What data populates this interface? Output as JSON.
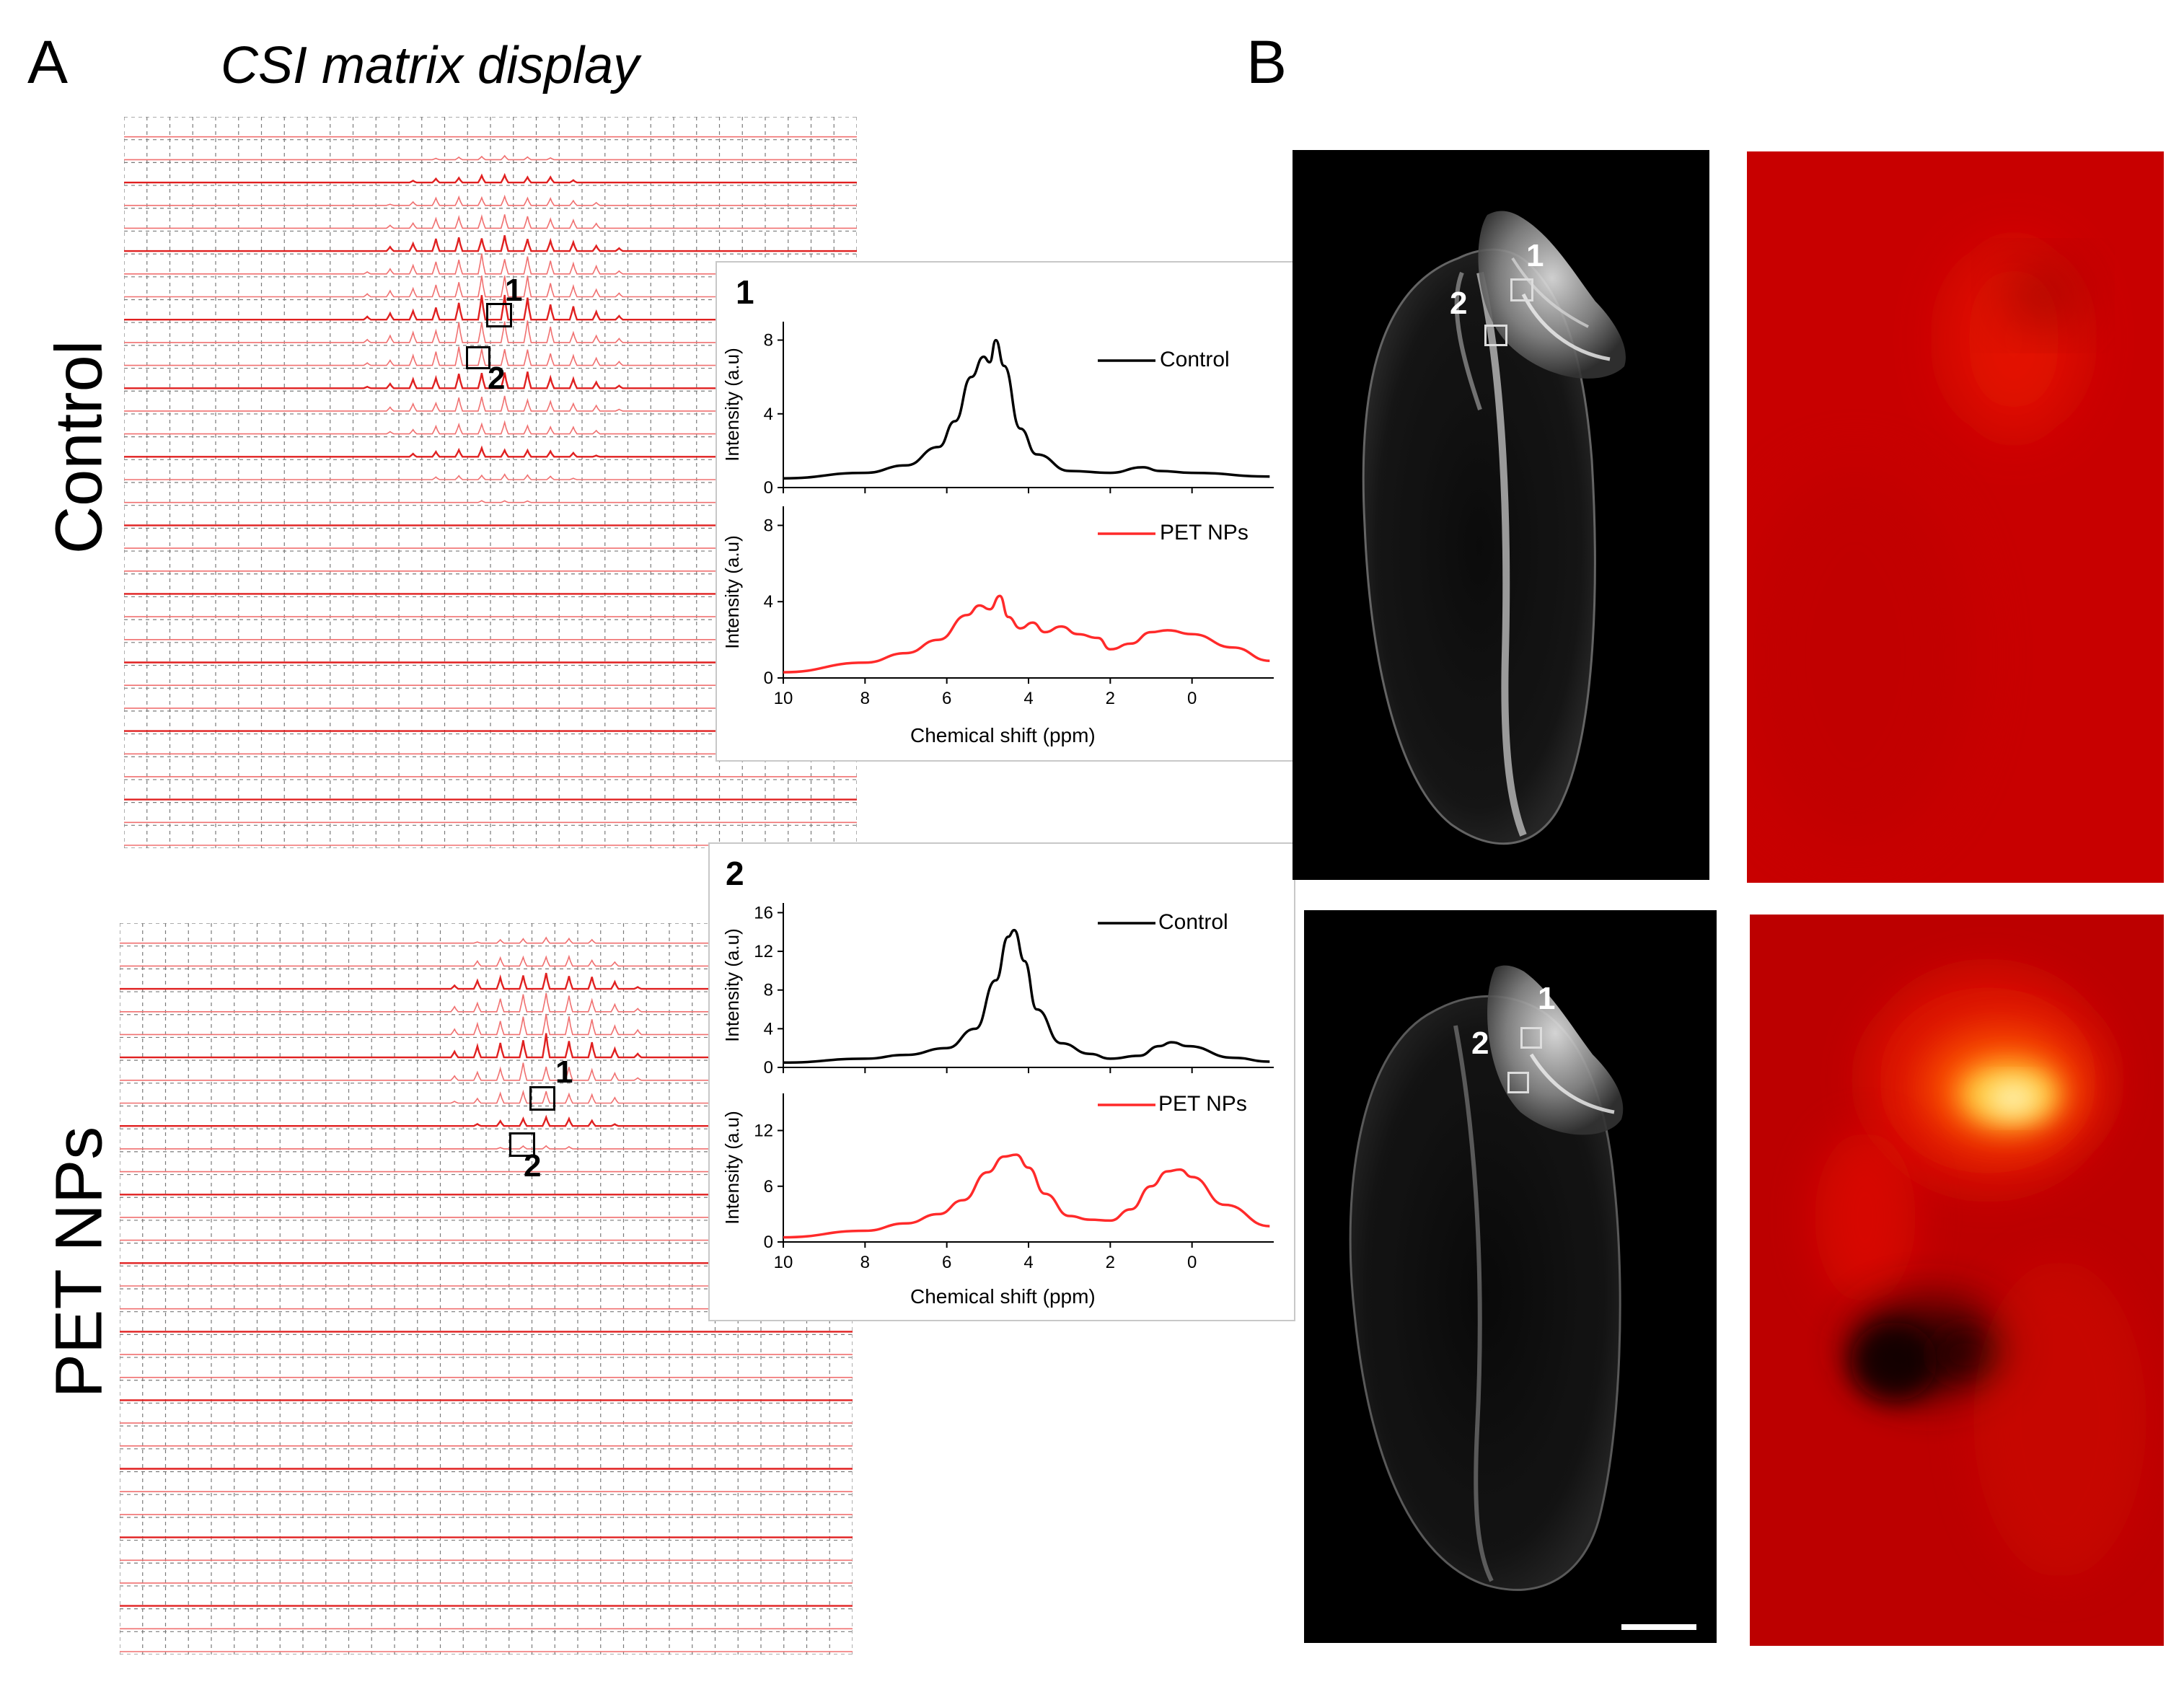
{
  "panels": {
    "a_letter": "A",
    "b_letter": "B",
    "a_title": "CSI matrix display"
  },
  "rows": {
    "control": "Control",
    "pet": "PET NPs"
  },
  "roi_labels": {
    "one": "1",
    "two": "2"
  },
  "insets": [
    {
      "number": "1",
      "xlabel": "Chemical shift (ppm)",
      "ylabel": "Intensity (a.u)",
      "xticks": [
        "10",
        "8",
        "6",
        "4",
        "2",
        "0"
      ],
      "top": {
        "legend": "Control",
        "yticks": [
          "0",
          "4",
          "8"
        ],
        "color": "#000000"
      },
      "bottom": {
        "legend": "PET NPs",
        "yticks": [
          "0",
          "4",
          "8"
        ],
        "color": "#ff2a2a"
      }
    },
    {
      "number": "2",
      "xlabel": "Chemical shift (ppm)",
      "ylabel": "Intensity (a.u)",
      "xticks": [
        "10",
        "8",
        "6",
        "4",
        "2",
        "0"
      ],
      "top": {
        "legend": "Control",
        "yticks": [
          "0",
          "4",
          "8",
          "12",
          "16"
        ],
        "color": "#000000"
      },
      "bottom": {
        "legend": "PET NPs",
        "yticks": [
          "0",
          "6",
          "12"
        ],
        "color": "#ff2a2a"
      }
    }
  ],
  "chart_data": [
    {
      "type": "line",
      "title": "1",
      "xlabel": "Chemical shift (ppm)",
      "ylabel": "Intensity (a.u)",
      "xlim": [
        10,
        -2
      ],
      "series": [
        {
          "name": "Control",
          "ylim": [
            0,
            9
          ],
          "x": [
            10,
            8,
            7,
            6.2,
            5.8,
            5.4,
            5.1,
            4.95,
            4.8,
            4.6,
            4.2,
            3.8,
            3.0,
            2.0,
            1.2,
            0.8,
            0,
            -1.9
          ],
          "y": [
            0.5,
            0.8,
            1.2,
            2.2,
            3.6,
            6.0,
            7.1,
            6.8,
            8.0,
            6.6,
            3.2,
            1.8,
            0.9,
            0.8,
            1.1,
            0.9,
            0.8,
            0.6
          ]
        },
        {
          "name": "PET NPs",
          "ylim": [
            0,
            9
          ],
          "x": [
            10,
            8,
            7,
            6.2,
            5.5,
            5.2,
            4.95,
            4.7,
            4.5,
            4.2,
            3.9,
            3.6,
            3.2,
            2.8,
            2.3,
            2.0,
            1.5,
            1.0,
            0.6,
            0,
            -1.0,
            -1.9
          ],
          "y": [
            0.3,
            0.8,
            1.3,
            2.0,
            3.3,
            3.8,
            3.6,
            4.3,
            3.2,
            2.6,
            2.9,
            2.4,
            2.7,
            2.3,
            2.1,
            1.5,
            1.8,
            2.4,
            2.5,
            2.3,
            1.6,
            0.9
          ]
        }
      ]
    },
    {
      "type": "line",
      "title": "2",
      "xlabel": "Chemical shift (ppm)",
      "ylabel": "Intensity (a.u)",
      "xlim": [
        10,
        -2
      ],
      "series": [
        {
          "name": "Control",
          "ylim": [
            0,
            17
          ],
          "x": [
            10,
            8,
            7,
            6,
            5.3,
            4.8,
            4.5,
            4.35,
            4.1,
            3.8,
            3.2,
            2.5,
            2.0,
            1.3,
            0.8,
            0.5,
            0.1,
            -1.0,
            -1.9
          ],
          "y": [
            0.5,
            0.9,
            1.3,
            2.0,
            4.0,
            9.0,
            13.5,
            14.2,
            11.0,
            6.0,
            2.5,
            1.4,
            0.9,
            1.2,
            2.2,
            2.6,
            2.2,
            1.0,
            0.6
          ]
        },
        {
          "name": "PET NPs",
          "ylim": [
            0,
            16
          ],
          "x": [
            10,
            8,
            7,
            6.2,
            5.6,
            5.0,
            4.6,
            4.3,
            4.0,
            3.6,
            3.0,
            2.5,
            2.0,
            1.5,
            1.0,
            0.6,
            0.3,
            0,
            -0.8,
            -1.9
          ],
          "y": [
            0.5,
            1.2,
            2.0,
            3.0,
            4.5,
            7.5,
            9.2,
            9.4,
            8.0,
            5.2,
            2.8,
            2.4,
            2.3,
            3.5,
            6.0,
            7.6,
            7.8,
            7.0,
            4.0,
            1.7
          ]
        }
      ]
    }
  ]
}
